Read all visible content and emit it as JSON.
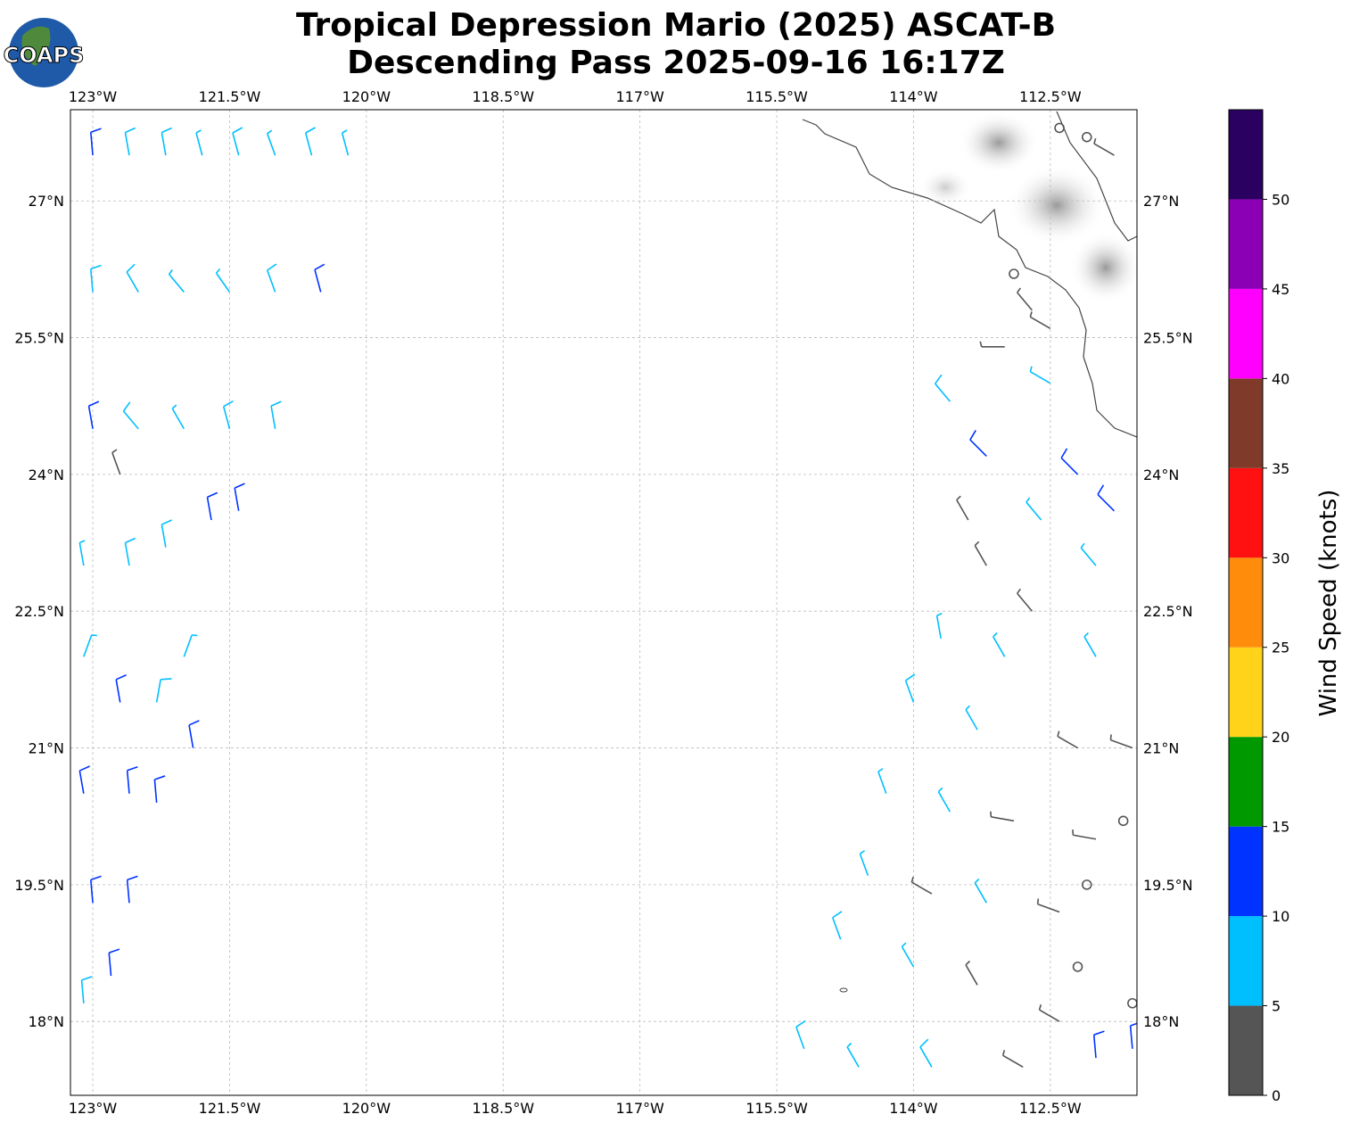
{
  "logo_text": "COAPS",
  "chart_data": {
    "type": "barbs",
    "title": "Tropical Depression Mario (2025) ASCAT-B",
    "subtitle": "Descending Pass 2025-09-16 16:17Z",
    "xlim": [
      -123.245,
      -111.55
    ],
    "ylim": [
      17.19,
      28.0
    ],
    "xticks": [
      {
        "value": -123,
        "label": "123°W"
      },
      {
        "value": -121.5,
        "label": "121.5°W"
      },
      {
        "value": -120,
        "label": "120°W"
      },
      {
        "value": -118.5,
        "label": "118.5°W"
      },
      {
        "value": -117,
        "label": "117°W"
      },
      {
        "value": -115.5,
        "label": "115.5°W"
      },
      {
        "value": -114,
        "label": "114°W"
      },
      {
        "value": -112.5,
        "label": "112.5°W"
      }
    ],
    "yticks": [
      {
        "value": 18,
        "label": "18°N"
      },
      {
        "value": 19.5,
        "label": "19.5°N"
      },
      {
        "value": 21,
        "label": "21°N"
      },
      {
        "value": 22.5,
        "label": "22.5°N"
      },
      {
        "value": 24,
        "label": "24°N"
      },
      {
        "value": 25.5,
        "label": "25.5°N"
      },
      {
        "value": 27,
        "label": "27°N"
      }
    ],
    "grid": true,
    "colorbar": {
      "label": "Wind Speed (knots)",
      "lim": [
        0,
        55
      ],
      "bounds": [
        0,
        5,
        10,
        15,
        20,
        25,
        30,
        35,
        40,
        45,
        50,
        55
      ],
      "colors": [
        "#555555",
        "#00bfff",
        "#0033ff",
        "#009900",
        "#ffd319",
        "#ff8c0a",
        "#ff1111",
        "#7f3a29",
        "#ff00ff",
        "#8b00b4",
        "#2a0060"
      ],
      "ticks": [
        0,
        5,
        10,
        15,
        20,
        25,
        30,
        35,
        40,
        45,
        50
      ]
    },
    "barbs": {
      "lon": [
        -123.0,
        -122.6,
        -122.2,
        -121.8,
        -121.4,
        -121.0,
        -120.6,
        -120.2,
        -123.0,
        -122.5,
        -122.0,
        -121.5,
        -121.0,
        -120.5,
        -123.0,
        -122.5,
        -122.0,
        -121.5,
        -121.0,
        -122.7,
        -123.1,
        -122.6,
        -122.2,
        -121.7,
        -121.4,
        -123.1,
        -122.7,
        -122.3,
        -122.0,
        -121.9,
        -123.1,
        -122.6,
        -122.3,
        -123.0,
        -122.6,
        -123.1,
        -122.8,
        -112.4,
        -112.1,
        -111.8,
        -112.9,
        -112.7,
        -112.5,
        -113.0,
        -112.5,
        -113.6,
        -113.2,
        -112.2,
        -111.8,
        -112.6,
        -113.4,
        -112.0,
        -113.2,
        -112.7,
        -113.7,
        -113.0,
        -112.0,
        -114.0,
        -113.3,
        -112.2,
        -111.6,
        -114.3,
        -113.6,
        -112.9,
        -112.0,
        -111.7,
        -114.5,
        -113.8,
        -113.2,
        -112.4,
        -112.1,
        -114.8,
        -114.0,
        -113.3,
        -112.4,
        -112.2,
        -111.6,
        -115.2,
        -114.6,
        -113.8,
        -112.8,
        -112.0,
        -111.6
      ],
      "lat": [
        27.5,
        27.5,
        27.5,
        27.5,
        27.5,
        27.5,
        27.5,
        27.5,
        26.0,
        26.0,
        26.0,
        26.0,
        26.0,
        26.0,
        24.5,
        24.5,
        24.5,
        24.5,
        24.5,
        24.0,
        23.0,
        23.0,
        23.2,
        23.5,
        23.6,
        22.0,
        21.5,
        21.5,
        22.0,
        21.0,
        20.5,
        20.5,
        20.4,
        19.3,
        19.3,
        18.2,
        18.5,
        27.8,
        27.7,
        27.5,
        26.2,
        25.8,
        25.6,
        25.4,
        25.0,
        24.8,
        24.2,
        24.0,
        23.6,
        23.5,
        23.5,
        23.0,
        23.0,
        22.5,
        22.2,
        22.0,
        22.0,
        21.5,
        21.2,
        21.0,
        21.0,
        20.5,
        20.3,
        20.2,
        20.0,
        20.2,
        19.6,
        19.4,
        19.3,
        19.2,
        19.5,
        18.9,
        18.6,
        18.4,
        18.0,
        18.6,
        18.2,
        17.7,
        17.5,
        17.5,
        17.5,
        17.6,
        17.7
      ],
      "speed": [
        11,
        8,
        8,
        7,
        8,
        7,
        8,
        7,
        8,
        8,
        7,
        7,
        8,
        11,
        12,
        8,
        7,
        8,
        8,
        4,
        7,
        8,
        8,
        11,
        11,
        6,
        11,
        8,
        7,
        11,
        11,
        11,
        12,
        12,
        11,
        8,
        10,
        1,
        0,
        4,
        1,
        4,
        4,
        4,
        6,
        8,
        11,
        12,
        12,
        7,
        4,
        7,
        4,
        4,
        7,
        6,
        7,
        8,
        7,
        4,
        4,
        7,
        7,
        4,
        4,
        0,
        7,
        4,
        7,
        4,
        0,
        8,
        7,
        4,
        3,
        0,
        0,
        8,
        7,
        8,
        4,
        11,
        12
      ],
      "direction": [
        355,
        350,
        350,
        345,
        345,
        340,
        345,
        345,
        355,
        330,
        320,
        325,
        340,
        345,
        350,
        320,
        330,
        345,
        350,
        340,
        350,
        350,
        350,
        350,
        350,
        20,
        350,
        10,
        20,
        350,
        350,
        355,
        355,
        355,
        355,
        355,
        355,
        0,
        0,
        300,
        0,
        320,
        300,
        270,
        300,
        320,
        315,
        315,
        315,
        320,
        330,
        320,
        330,
        320,
        350,
        330,
        330,
        340,
        330,
        300,
        290,
        340,
        330,
        280,
        280,
        0,
        340,
        300,
        330,
        290,
        0,
        340,
        330,
        330,
        300,
        0,
        0,
        340,
        330,
        330,
        300,
        355,
        355
      ]
    }
  }
}
